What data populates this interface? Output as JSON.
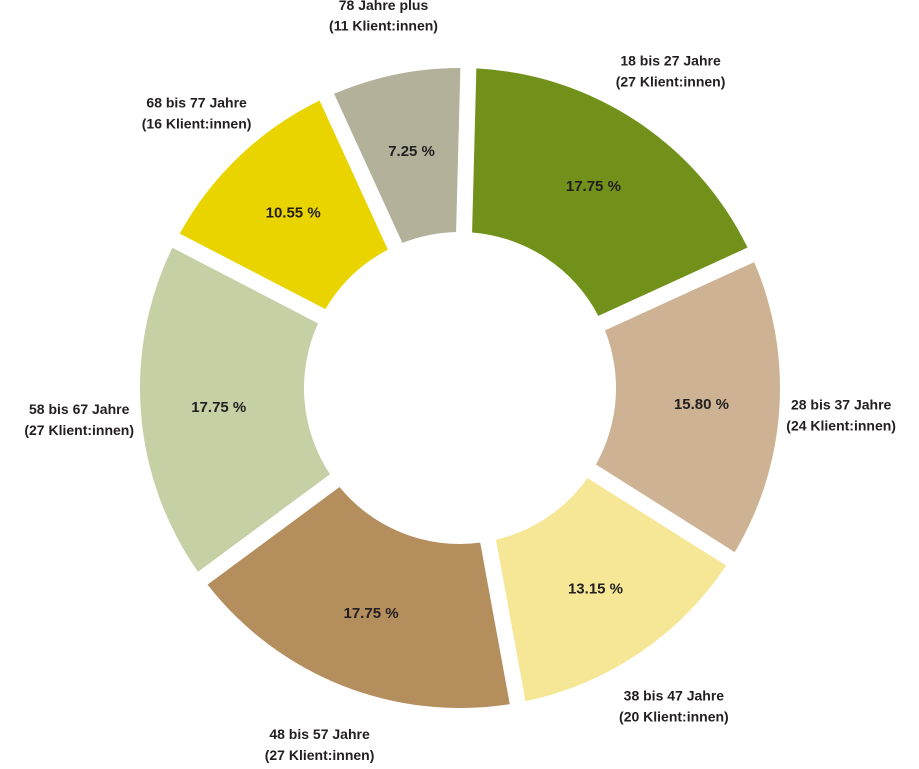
{
  "chart_data": {
    "type": "pie",
    "donut": true,
    "title": "",
    "legend": "none",
    "slices": [
      {
        "name": "18 bis 27 Jahre",
        "count": "(27 Klient:innen)",
        "value": 17.75,
        "value_label": "17.75 %",
        "color": "#72911a"
      },
      {
        "name": "28 bis 37 Jahre",
        "count": "(24 Klient:innen)",
        "value": 15.8,
        "value_label": "15.80 %",
        "color": "#cdb293"
      },
      {
        "name": "38 bis 47 Jahre",
        "count": "(20 Klient:innen)",
        "value": 13.15,
        "value_label": "13.15 %",
        "color": "#f6e797"
      },
      {
        "name": "48 bis 57 Jahre",
        "count": "(27 Klient:innen)",
        "value": 17.75,
        "value_label": "17.75 %",
        "color": "#b58e5e"
      },
      {
        "name": "58 bis 67 Jahre",
        "count": "(27 Klient:innen)",
        "value": 17.75,
        "value_label": "17.75 %",
        "color": "#c5d0a4"
      },
      {
        "name": "68 bis 77 Jahre",
        "count": "(16 Klient:innen)",
        "value": 10.55,
        "value_label": "10.55 %",
        "color": "#e9d400"
      },
      {
        "name": "78 Jahre plus",
        "count": "(11 Klient:innen)",
        "value": 7.25,
        "value_label": "7.25 %",
        "color": "#b3b19a"
      }
    ]
  }
}
